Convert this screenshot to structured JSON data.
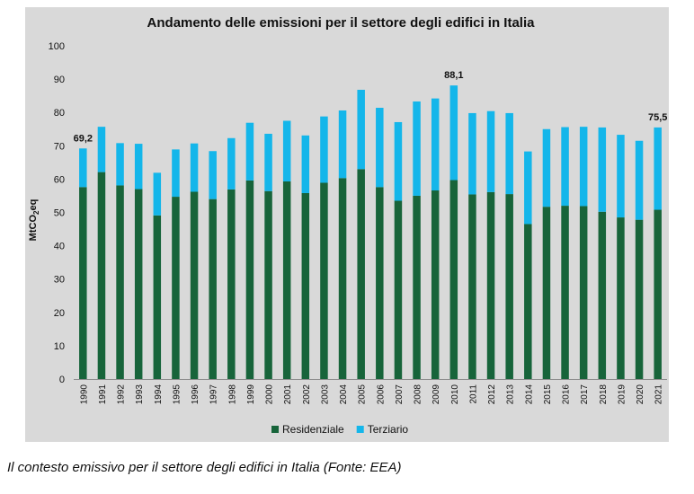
{
  "chart_data": {
    "type": "bar",
    "stacked": true,
    "title": "Andamento delle emissioni per il settore degli edifici in Italia",
    "ylabel": "MtCO2eq",
    "ylabel_main": "MtCO",
    "ylabel_sub": "2",
    "ylabel_tail": "eq",
    "ylim": [
      0,
      100
    ],
    "yticks": [
      0,
      10,
      20,
      30,
      40,
      50,
      60,
      70,
      80,
      90,
      100
    ],
    "grid": false,
    "legend_position": "bottom",
    "categories": [
      "1990",
      "1991",
      "1992",
      "1993",
      "1994",
      "1995",
      "1996",
      "1997",
      "1998",
      "1999",
      "2000",
      "2001",
      "2002",
      "2003",
      "2004",
      "2005",
      "2006",
      "2007",
      "2008",
      "2009",
      "2010",
      "2011",
      "2012",
      "2013",
      "2014",
      "2015",
      "2016",
      "2017",
      "2018",
      "2019",
      "2020",
      "2021"
    ],
    "series": [
      {
        "name": "Residenziale",
        "color": "#17643a",
        "values": [
          57.6,
          62.1,
          58.1,
          57.0,
          49.1,
          54.7,
          56.2,
          54.0,
          56.9,
          59.6,
          56.4,
          59.3,
          55.8,
          58.9,
          60.3,
          63.0,
          57.6,
          53.5,
          55.0,
          56.6,
          59.7,
          55.4,
          56.1,
          55.5,
          46.5,
          51.7,
          52.0,
          51.9,
          50.2,
          48.5,
          47.8,
          50.8
        ]
      },
      {
        "name": "Terziario",
        "color": "#14b6ea",
        "values": [
          11.6,
          13.6,
          12.7,
          13.6,
          12.8,
          14.2,
          14.5,
          14.4,
          15.4,
          17.3,
          17.2,
          18.2,
          17.3,
          19.9,
          20.3,
          23.8,
          23.8,
          23.6,
          28.3,
          27.6,
          28.4,
          24.4,
          24.3,
          24.3,
          21.8,
          23.3,
          23.6,
          23.8,
          25.3,
          24.8,
          23.7,
          24.7
        ]
      }
    ],
    "annotations": [
      {
        "category": "1990",
        "text": "69,2"
      },
      {
        "category": "2010",
        "text": "88,1"
      },
      {
        "category": "2021",
        "text": "75,5"
      }
    ]
  },
  "caption": "Il contesto emissivo per il settore degli edifici in Italia (Fonte: EEA)"
}
